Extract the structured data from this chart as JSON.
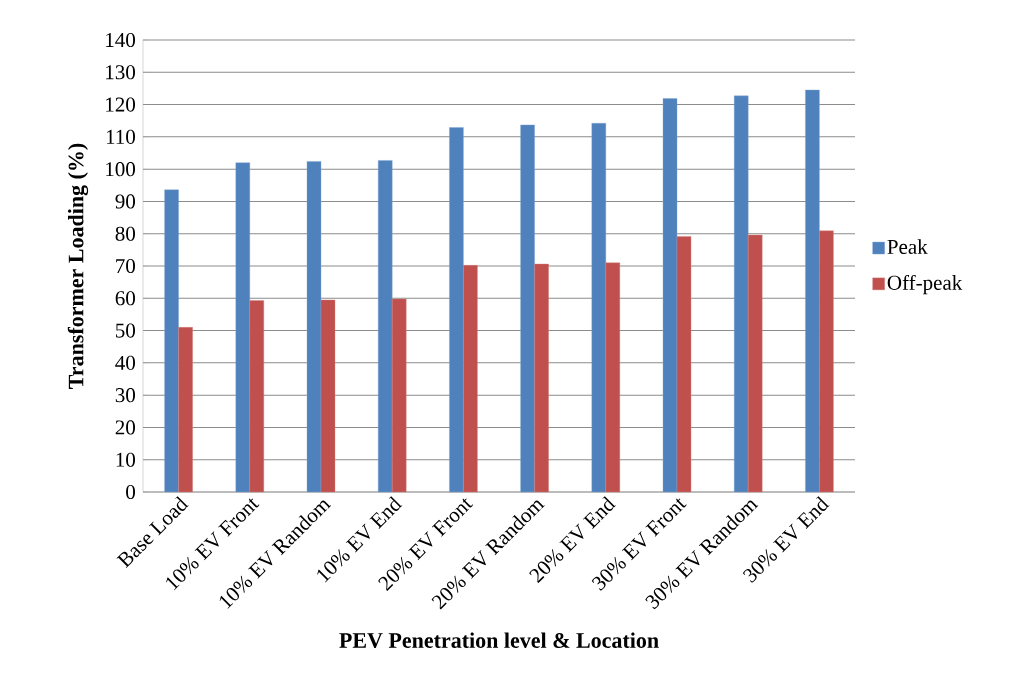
{
  "chart_data": {
    "type": "bar",
    "xlabel": "PEV Penetration level & Location",
    "ylabel": "Transformer Loading (%)",
    "categories": [
      "Base Load",
      "10% EV Front",
      "10% EV Random",
      "10% EV End",
      "20% EV Front",
      "20% EV Random",
      "20% EV End",
      "30% EV Front",
      "30% EV Random",
      "30% EV End"
    ],
    "series": [
      {
        "name": "Peak",
        "color": "#4f81bd",
        "values": [
          93.6,
          102.0,
          102.4,
          102.7,
          112.9,
          113.7,
          114.2,
          121.9,
          122.7,
          124.5
        ]
      },
      {
        "name": "Off-peak",
        "color": "#c0504d",
        "values": [
          51.0,
          59.3,
          59.5,
          59.8,
          70.2,
          70.6,
          71.0,
          79.1,
          79.6,
          80.9
        ]
      }
    ],
    "ylim": [
      0,
      140
    ],
    "yticks": [
      0,
      10,
      20,
      30,
      40,
      50,
      60,
      70,
      80,
      90,
      100,
      110,
      120,
      130,
      140
    ],
    "grid": "y",
    "legend": "right"
  }
}
